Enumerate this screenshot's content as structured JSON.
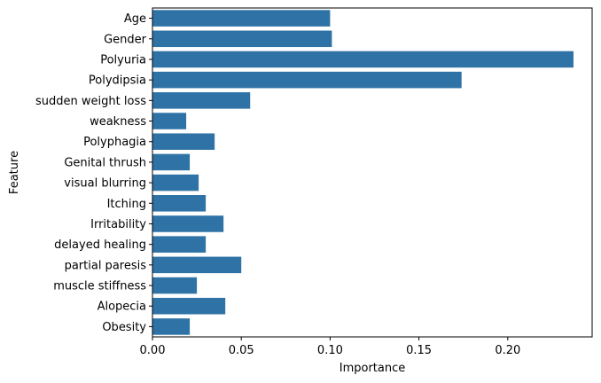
{
  "chart_data": {
    "type": "bar",
    "orientation": "horizontal",
    "title": "",
    "xlabel": "Importance",
    "ylabel": "Feature",
    "categories": [
      "Age",
      "Gender",
      "Polyuria",
      "Polydipsia",
      "sudden weight loss",
      "weakness",
      "Polyphagia",
      "Genital thrush",
      "visual blurring",
      "Itching",
      "Irritability",
      "delayed healing",
      "partial paresis",
      "muscle stiffness",
      "Alopecia",
      "Obesity"
    ],
    "values": [
      0.1,
      0.101,
      0.237,
      0.174,
      0.055,
      0.019,
      0.035,
      0.021,
      0.026,
      0.03,
      0.04,
      0.03,
      0.05,
      0.025,
      0.041,
      0.021
    ],
    "xlim": [
      0,
      0.2475
    ],
    "xticks": [
      0.0,
      0.05,
      0.1,
      0.15,
      0.2
    ],
    "xtick_labels": [
      "0.00",
      "0.05",
      "0.10",
      "0.15",
      "0.20"
    ],
    "grid": false,
    "legend": "none",
    "bar_color": "#2f73a6"
  }
}
